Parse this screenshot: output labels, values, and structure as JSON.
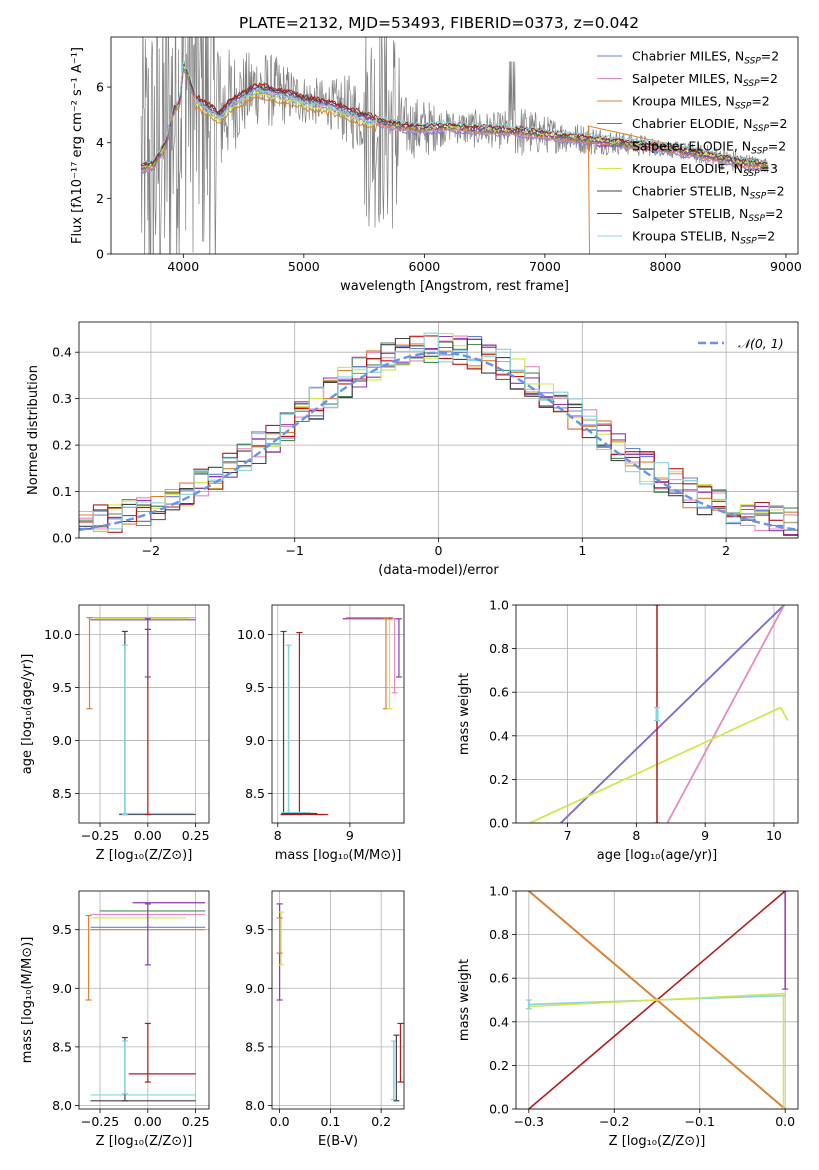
{
  "title": "PLATE=2132, MJD=53493, FIBERID=0373, z=0.042",
  "colors": {
    "Chabrier MILES": "#6c7fd6",
    "Salpeter MILES": "#e68ac0",
    "Kroupa MILES": "#d98234",
    "Chabrier ELODIE": "#4a8a5e",
    "Salpeter ELODIE": "#8e3aad",
    "Kroupa ELODIE": "#cfe84e",
    "Chabrier STELIB": "#444444",
    "Salpeter STELIB": "#b01c1c",
    "Kroupa STELIB": "#89d3dc",
    "data": "#808080",
    "normal": "#6495ed"
  },
  "chart_data": [
    {
      "type": "line",
      "id": "spectrum",
      "xlabel": "wavelength [Angstrom, rest frame]",
      "ylabel": "Flux [fλ10⁻¹⁷ erg cm⁻² s⁻¹ A⁻¹]",
      "xlim": [
        3400,
        9100
      ],
      "ylim": [
        0,
        7.8
      ],
      "xticks": [
        4000,
        5000,
        6000,
        7000,
        8000,
        9000
      ],
      "yticks": [
        0,
        2,
        4,
        6
      ],
      "grid": false,
      "legend_position": "upper-right",
      "legend": [
        {
          "name": "Chabrier MILES",
          "nssp": "2"
        },
        {
          "name": "Salpeter MILES",
          "nssp": "2"
        },
        {
          "name": "Kroupa MILES",
          "nssp": "2"
        },
        {
          "name": "Chabrier ELODIE",
          "nssp": "2"
        },
        {
          "name": "Salpeter ELODIE",
          "nssp": "2"
        },
        {
          "name": "Kroupa ELODIE",
          "nssp": "3"
        },
        {
          "name": "Chabrier STELIB",
          "nssp": "2"
        },
        {
          "name": "Salpeter STELIB",
          "nssp": "2"
        },
        {
          "name": "Kroupa STELIB",
          "nssp": "2"
        }
      ],
      "model_x": [
        3650,
        3750,
        3850,
        3920,
        3970,
        4000,
        4050,
        4100,
        4200,
        4300,
        4400,
        4500,
        4600,
        4700,
        4800,
        4900,
        5000,
        5200,
        5400,
        5600,
        5800,
        6000,
        6200,
        6400,
        6600,
        6800,
        7000,
        7200,
        7400,
        7600,
        7800,
        8000,
        8200,
        8400,
        8600,
        8800
      ],
      "model_y": [
        3.1,
        3.2,
        3.9,
        5.2,
        5.4,
        6.8,
        6.3,
        5.6,
        5.3,
        5.0,
        5.5,
        5.7,
        6.0,
        5.9,
        5.8,
        5.7,
        5.55,
        5.4,
        5.1,
        4.8,
        4.6,
        4.5,
        4.6,
        4.5,
        4.45,
        4.4,
        4.3,
        4.2,
        4.1,
        4.0,
        3.9,
        3.8,
        3.65,
        3.5,
        3.3,
        3.2
      ],
      "data_envelope": [
        4.2,
        3.8,
        4.5,
        6.0,
        6.6,
        7.5,
        7.8,
        7.5,
        6.6,
        6.8,
        6.9,
        6.8,
        7.0,
        6.9,
        6.7,
        6.4,
        6.2,
        6.0,
        6.1,
        5.6,
        5.4,
        5.3,
        5.0,
        5.0,
        4.9,
        5.1,
        4.8,
        4.6,
        4.5,
        4.3,
        4.2,
        4.0,
        3.9,
        3.8,
        3.6,
        3.4
      ]
    },
    {
      "type": "step",
      "id": "residuals",
      "xlabel": "(data-model)/error",
      "ylabel": "Normed distribution",
      "xlim": [
        -2.5,
        2.5
      ],
      "ylim": [
        0,
        0.465
      ],
      "xticks": [
        -2,
        -1,
        0,
        1,
        2
      ],
      "xtick_labels": [
        "−2",
        "−1",
        "0",
        "1",
        "2"
      ],
      "yticks": [
        0,
        0.1,
        0.2,
        0.3,
        0.4
      ],
      "ytick_labels": [
        "0.0",
        "0.1",
        "0.2",
        "0.3",
        "0.4"
      ],
      "grid": true,
      "legend": "𝒩(0, 1)",
      "legend_position": "upper-right",
      "bin_width": 0.1
    },
    {
      "type": "errorbar",
      "id": "age_vs_Z",
      "xlabel": "Z [log₁₀(Z/Z⊙)]",
      "ylabel": "age  [log₁₀(age/yr)]",
      "xlim": [
        -0.36,
        0.32
      ],
      "ylim": [
        8.22,
        10.28
      ],
      "xticks": [
        -0.25,
        0,
        0.25
      ],
      "xtick_labels": [
        "−0.25",
        "0.00",
        "0.25"
      ],
      "yticks": [
        8.5,
        9.0,
        9.5,
        10.0
      ],
      "ytick_labels": [
        "8.5",
        "9.0",
        "9.5",
        "10.0"
      ],
      "grid": true
    },
    {
      "type": "errorbar",
      "id": "age_vs_mass",
      "xlabel": "mass [log₁₀(M/M⊙)]",
      "xlim": [
        7.92,
        9.75
      ],
      "ylim": [
        8.22,
        10.28
      ],
      "xticks": [
        8,
        9
      ],
      "xtick_labels": [
        "8",
        "9"
      ],
      "yticks": [
        8.5,
        9.0,
        9.5,
        10.0
      ],
      "ytick_labels": [
        "8.5",
        "9.0",
        "9.5",
        "10.0"
      ],
      "grid": true
    },
    {
      "type": "line",
      "id": "weight_vs_age",
      "xlabel": "age  [log₁₀(age/yr)]",
      "ylabel": "mass weight",
      "xlim": [
        6.25,
        10.35
      ],
      "ylim": [
        0,
        1
      ],
      "xticks": [
        7,
        8,
        9,
        10
      ],
      "yticks": [
        0,
        0.2,
        0.4,
        0.6,
        0.8,
        1.0
      ],
      "ytick_labels": [
        "0.0",
        "0.2",
        "0.4",
        "0.6",
        "0.8",
        "1.0"
      ],
      "grid": true,
      "series": [
        {
          "color": "Salpeter ELODIE",
          "x": [
            6.9,
            10.15
          ],
          "y": [
            0,
            1
          ]
        },
        {
          "color": "Chabrier MILES",
          "x": [
            6.9,
            10.15
          ],
          "y": [
            0,
            1
          ]
        },
        {
          "color": "Salpeter MILES",
          "x": [
            8.45,
            10.15
          ],
          "y": [
            0,
            1
          ]
        },
        {
          "color": "Kroupa ELODIE",
          "x": [
            6.45,
            10.1
          ],
          "y": [
            0,
            0.53
          ]
        },
        {
          "color": "Kroupa ELODIE",
          "x": [
            10.1,
            10.2
          ],
          "y": [
            0.53,
            0.47
          ]
        }
      ],
      "vertical_errorbars": [
        {
          "color": "Salpeter STELIB",
          "x": 8.3,
          "y": [
            0,
            1
          ]
        },
        {
          "color": "Kroupa STELIB",
          "x": 8.3,
          "y": [
            0.47,
            0.53
          ]
        }
      ]
    },
    {
      "type": "errorbar",
      "id": "mass_vs_Z",
      "xlabel": "Z [log₁₀(Z/Z⊙)]",
      "ylabel": "mass [log₁₀(M/M⊙)]",
      "xlim": [
        -0.36,
        0.32
      ],
      "ylim": [
        7.97,
        9.83
      ],
      "xticks": [
        -0.25,
        0,
        0.25
      ],
      "xtick_labels": [
        "−0.25",
        "0.00",
        "0.25"
      ],
      "yticks": [
        8.0,
        8.5,
        9.0,
        9.5
      ],
      "ytick_labels": [
        "8.0",
        "8.5",
        "9.0",
        "9.5"
      ],
      "grid": true
    },
    {
      "type": "errorbar",
      "id": "mass_vs_EBV",
      "xlabel": "E(B-V)",
      "xlim": [
        -0.015,
        0.245
      ],
      "ylim": [
        7.97,
        9.83
      ],
      "xticks": [
        0.0,
        0.1,
        0.2
      ],
      "xtick_labels": [
        "0.0",
        "0.1",
        "0.2"
      ],
      "yticks": [
        8.0,
        8.5,
        9.0,
        9.5
      ],
      "ytick_labels": [
        "8.0",
        "8.5",
        "9.0",
        "9.5"
      ],
      "grid": true
    },
    {
      "type": "line",
      "id": "weight_vs_Z",
      "xlabel": "Z [log₁₀(Z/Z⊙)]",
      "ylabel": "mass weight",
      "xlim": [
        -0.315,
        0.015
      ],
      "ylim": [
        0,
        1
      ],
      "xticks": [
        -0.3,
        -0.2,
        -0.1,
        0.0
      ],
      "xtick_labels": [
        "−0.3",
        "−0.2",
        "−0.1",
        "0.0"
      ],
      "yticks": [
        0,
        0.2,
        0.4,
        0.6,
        0.8,
        1.0
      ],
      "ytick_labels": [
        "0.0",
        "0.2",
        "0.4",
        "0.6",
        "0.8",
        "1.0"
      ],
      "grid": true,
      "series": [
        {
          "color": "Kroupa MILES",
          "x": [
            -0.3,
            0.0
          ],
          "y": [
            1,
            0
          ]
        },
        {
          "color": "Salpeter STELIB",
          "x": [
            -0.3,
            0.0
          ],
          "y": [
            0,
            1
          ]
        },
        {
          "color": "Kroupa STELIB",
          "x": [
            -0.3,
            0.0
          ],
          "y": [
            0.48,
            0.52
          ]
        },
        {
          "color": "Kroupa ELODIE",
          "x": [
            -0.3,
            0.0
          ],
          "y": [
            0.47,
            0.53
          ]
        }
      ],
      "vertical_errorbars": [
        {
          "color": "Salpeter ELODIE",
          "x": 0.0,
          "y": [
            0.55,
            1
          ]
        },
        {
          "color": "Kroupa ELODIE",
          "x": -0.002,
          "y": [
            0,
            0.53
          ]
        }
      ]
    }
  ]
}
